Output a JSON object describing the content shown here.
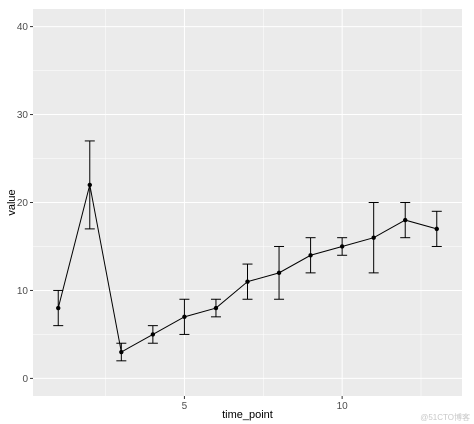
{
  "chart_data": {
    "type": "line",
    "xlabel": "time_point",
    "ylabel": "value",
    "xlim": [
      0.2,
      13.8
    ],
    "ylim": [
      -2,
      42
    ],
    "x_ticks": [
      5,
      10
    ],
    "x_minor_ticks": [
      2.5,
      7.5,
      12.5
    ],
    "y_ticks": [
      0,
      10,
      20,
      30,
      40
    ],
    "y_minor_ticks": [
      5,
      15,
      25,
      35
    ],
    "grid": true,
    "legend": "none",
    "colors": {
      "panel": "#ebebeb",
      "grid": "#ffffff",
      "series": "#000000"
    },
    "series": [
      {
        "x": [
          1,
          2,
          3,
          4,
          5,
          6,
          7,
          8,
          9,
          10,
          11,
          12,
          13
        ],
        "values": [
          8,
          22,
          3,
          5,
          7,
          8,
          11,
          12,
          14,
          15,
          16,
          18,
          17
        ],
        "error_low": [
          6,
          17,
          2,
          4,
          5,
          7,
          9,
          9,
          12,
          14,
          12,
          16,
          15
        ],
        "error_high": [
          10,
          27,
          4,
          6,
          9,
          9,
          13,
          15,
          16,
          16,
          20,
          20,
          19
        ]
      }
    ]
  },
  "watermark": "@51CTO博客"
}
